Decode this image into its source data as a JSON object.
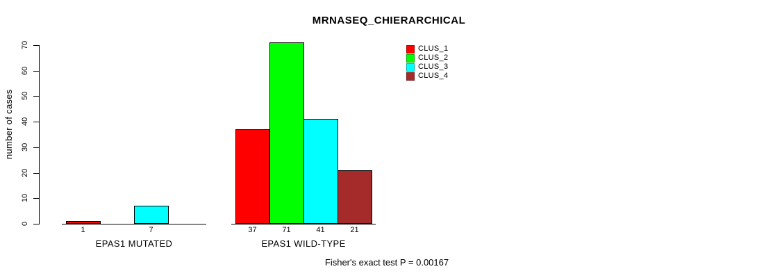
{
  "title": "MRNASEQ_CHIERARCHICAL",
  "footer": "Fisher's exact test P = 0.00167",
  "legend": {
    "items": [
      {
        "label": "CLUS_1",
        "color": "#ff0000"
      },
      {
        "label": "CLUS_2",
        "color": "#00ff00"
      },
      {
        "label": "CLUS_3",
        "color": "#00ffff"
      },
      {
        "label": "CLUS_4",
        "color": "#a52a2a"
      }
    ]
  },
  "chart_data": {
    "type": "bar",
    "title": "MRNASEQ_CHIERARCHICAL",
    "xlabel": "",
    "ylabel": "number of cases",
    "ylim": [
      0,
      70
    ],
    "yticks": [
      0,
      10,
      20,
      30,
      40,
      50,
      60,
      70
    ],
    "grid": false,
    "legend_position": "top-right",
    "series_names": [
      "CLUS_1",
      "CLUS_2",
      "CLUS_3",
      "CLUS_4"
    ],
    "series_colors": [
      "#ff0000",
      "#00ff00",
      "#00ffff",
      "#a52a2a"
    ],
    "categories": [
      "EPAS1 MUTATED",
      "EPAS1 WILD-TYPE"
    ],
    "groups": [
      {
        "label": "EPAS1 MUTATED",
        "values": [
          1,
          0,
          7,
          0
        ],
        "bar_labels": [
          "1",
          "",
          "7",
          ""
        ]
      },
      {
        "label": "EPAS1 WILD-TYPE",
        "values": [
          37,
          71,
          41,
          21
        ],
        "bar_labels": [
          "37",
          "71",
          "41",
          "21"
        ]
      }
    ],
    "annotation": "Fisher's exact test P = 0.00167"
  }
}
